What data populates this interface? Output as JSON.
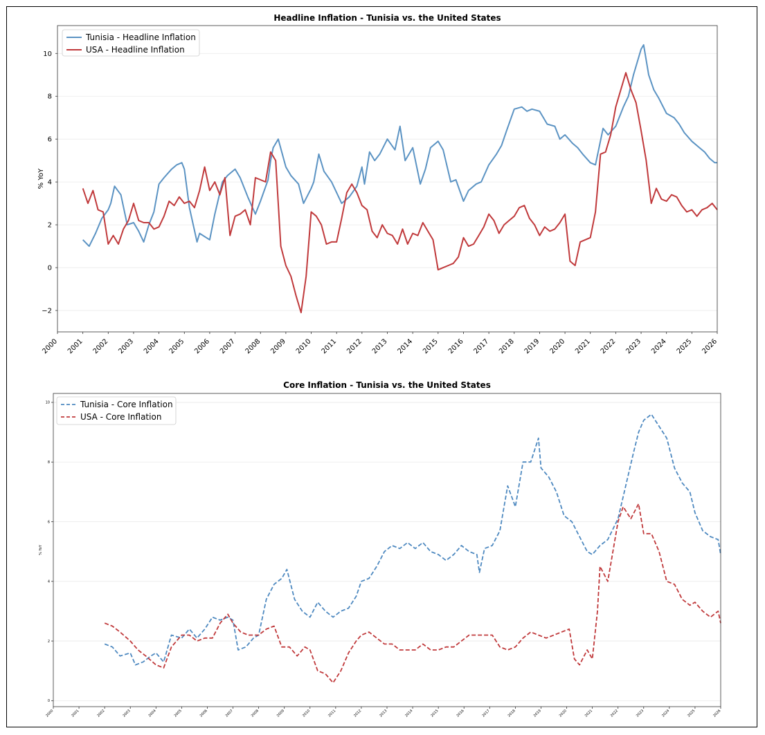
{
  "chart_data": [
    {
      "type": "line",
      "title": "Headline Inflation - Tunisia vs. the United States",
      "xlabel": "",
      "ylabel": "% YoY",
      "xlim": [
        2000,
        2026
      ],
      "ylim": [
        -3,
        11.3
      ],
      "x_ticks": [
        "2000",
        "2001",
        "2002",
        "2003",
        "2004",
        "2005",
        "2006",
        "2007",
        "2008",
        "2009",
        "2010",
        "2011",
        "2012",
        "2013",
        "2014",
        "2015",
        "2016",
        "2017",
        "2018",
        "2019",
        "2020",
        "2021",
        "2022",
        "2023",
        "2024",
        "2025",
        "2026"
      ],
      "y_ticks": [
        -2,
        0,
        2,
        4,
        6,
        8,
        10
      ],
      "grid": "horizontal",
      "legend": "top-left",
      "series": [
        {
          "name": "Tunisia - Headline Inflation",
          "color": "#5b93c3",
          "dash": "solid",
          "x": [
            2001.0,
            2001.25,
            2001.5,
            2001.75,
            2002.0,
            2002.1,
            2002.25,
            2002.5,
            2002.75,
            2003.0,
            2003.2,
            2003.4,
            2003.6,
            2003.8,
            2004.0,
            2004.2,
            2004.5,
            2004.7,
            2004.9,
            2005.0,
            2005.2,
            2005.5,
            2005.6,
            2006.0,
            2006.2,
            2006.5,
            2006.7,
            2007.0,
            2007.2,
            2007.5,
            2007.8,
            2008.0,
            2008.3,
            2008.4,
            2008.5,
            2008.7,
            2009.0,
            2009.2,
            2009.5,
            2009.7,
            2010.0,
            2010.1,
            2010.3,
            2010.5,
            2010.8,
            2011.0,
            2011.2,
            2011.5,
            2011.8,
            2012.0,
            2012.1,
            2012.3,
            2012.5,
            2012.7,
            2013.0,
            2013.3,
            2013.5,
            2013.7,
            2014.0,
            2014.3,
            2014.5,
            2014.7,
            2015.0,
            2015.2,
            2015.5,
            2015.7,
            2016.0,
            2016.2,
            2016.5,
            2016.7,
            2017.0,
            2017.3,
            2017.5,
            2017.7,
            2018.0,
            2018.3,
            2018.5,
            2018.7,
            2019.0,
            2019.3,
            2019.6,
            2019.8,
            2020.0,
            2020.3,
            2020.5,
            2020.7,
            2021.0,
            2021.2,
            2021.5,
            2021.7,
            2022.0,
            2022.3,
            2022.5,
            2022.7,
            2023.0,
            2023.1,
            2023.3,
            2023.5,
            2023.7,
            2024.0,
            2024.3,
            2024.5,
            2024.7,
            2025.0,
            2025.3,
            2025.5,
            2025.7,
            2025.9,
            2026.0
          ],
          "values": [
            1.3,
            1.0,
            1.6,
            2.3,
            2.7,
            3.0,
            3.8,
            3.4,
            2.0,
            2.1,
            1.7,
            1.2,
            2.0,
            2.6,
            3.9,
            4.2,
            4.6,
            4.8,
            4.9,
            4.6,
            2.8,
            1.2,
            1.6,
            1.3,
            2.5,
            4.0,
            4.3,
            4.6,
            4.2,
            3.3,
            2.5,
            3.1,
            4.1,
            5.0,
            5.6,
            6.0,
            4.7,
            4.3,
            3.9,
            3.0,
            3.7,
            4.0,
            5.3,
            4.5,
            4.0,
            3.5,
            3.0,
            3.3,
            3.8,
            4.7,
            3.9,
            5.4,
            5.0,
            5.3,
            6.0,
            5.5,
            6.6,
            5.0,
            5.6,
            3.9,
            4.6,
            5.6,
            5.9,
            5.5,
            4.0,
            4.1,
            3.1,
            3.6,
            3.9,
            4.0,
            4.8,
            5.3,
            5.7,
            6.4,
            7.4,
            7.5,
            7.3,
            7.4,
            7.3,
            6.7,
            6.6,
            6.0,
            6.2,
            5.8,
            5.6,
            5.3,
            4.9,
            4.8,
            6.5,
            6.2,
            6.6,
            7.5,
            8.0,
            9.0,
            10.2,
            10.4,
            9.0,
            8.3,
            7.9,
            7.2,
            7.0,
            6.7,
            6.3,
            5.9,
            5.6,
            5.4,
            5.1,
            4.9,
            4.9
          ]
        },
        {
          "name": "USA - Headline Inflation",
          "color": "#c0393b",
          "dash": "solid",
          "x": [
            2001.0,
            2001.2,
            2001.4,
            2001.6,
            2001.8,
            2002.0,
            2002.2,
            2002.4,
            2002.6,
            2002.8,
            2003.0,
            2003.2,
            2003.4,
            2003.6,
            2003.8,
            2004.0,
            2004.2,
            2004.4,
            2004.6,
            2004.8,
            2005.0,
            2005.2,
            2005.4,
            2005.6,
            2005.8,
            2006.0,
            2006.2,
            2006.4,
            2006.6,
            2006.8,
            2007.0,
            2007.2,
            2007.4,
            2007.6,
            2007.8,
            2008.0,
            2008.2,
            2008.4,
            2008.6,
            2008.8,
            2009.0,
            2009.2,
            2009.4,
            2009.6,
            2009.8,
            2010.0,
            2010.2,
            2010.4,
            2010.6,
            2010.8,
            2011.0,
            2011.2,
            2011.4,
            2011.6,
            2011.8,
            2012.0,
            2012.2,
            2012.4,
            2012.6,
            2012.8,
            2013.0,
            2013.2,
            2013.4,
            2013.6,
            2013.8,
            2014.0,
            2014.2,
            2014.4,
            2014.6,
            2014.8,
            2015.0,
            2015.2,
            2015.4,
            2015.6,
            2015.8,
            2016.0,
            2016.2,
            2016.4,
            2016.6,
            2016.8,
            2017.0,
            2017.2,
            2017.4,
            2017.6,
            2017.8,
            2018.0,
            2018.2,
            2018.4,
            2018.6,
            2018.8,
            2019.0,
            2019.2,
            2019.4,
            2019.6,
            2019.8,
            2020.0,
            2020.2,
            2020.4,
            2020.6,
            2020.8,
            2021.0,
            2021.2,
            2021.4,
            2021.6,
            2021.8,
            2022.0,
            2022.2,
            2022.4,
            2022.6,
            2022.8,
            2023.0,
            2023.2,
            2023.4,
            2023.6,
            2023.8,
            2024.0,
            2024.2,
            2024.4,
            2024.6,
            2024.8,
            2025.0,
            2025.2,
            2025.4,
            2025.6,
            2025.8,
            2026.0
          ],
          "values": [
            3.7,
            3.0,
            3.6,
            2.7,
            2.6,
            1.1,
            1.5,
            1.1,
            1.8,
            2.2,
            3.0,
            2.2,
            2.1,
            2.1,
            1.8,
            1.9,
            2.4,
            3.1,
            2.9,
            3.3,
            3.0,
            3.1,
            2.8,
            3.6,
            4.7,
            3.6,
            4.0,
            3.4,
            4.2,
            1.5,
            2.4,
            2.5,
            2.7,
            2.0,
            4.2,
            4.1,
            4.0,
            5.4,
            5.0,
            1.0,
            0.1,
            -0.4,
            -1.3,
            -2.1,
            -0.4,
            2.6,
            2.4,
            2.0,
            1.1,
            1.2,
            1.2,
            2.3,
            3.5,
            3.9,
            3.5,
            2.9,
            2.7,
            1.7,
            1.4,
            2.0,
            1.6,
            1.5,
            1.1,
            1.8,
            1.1,
            1.6,
            1.5,
            2.1,
            1.7,
            1.3,
            -0.1,
            0.0,
            0.1,
            0.2,
            0.5,
            1.4,
            1.0,
            1.1,
            1.5,
            1.9,
            2.5,
            2.2,
            1.6,
            2.0,
            2.2,
            2.4,
            2.8,
            2.9,
            2.3,
            2.0,
            1.5,
            1.9,
            1.7,
            1.8,
            2.1,
            2.5,
            0.3,
            0.1,
            1.2,
            1.3,
            1.4,
            2.6,
            5.3,
            5.4,
            6.2,
            7.5,
            8.3,
            9.1,
            8.3,
            7.7,
            6.4,
            5.0,
            3.0,
            3.7,
            3.2,
            3.1,
            3.4,
            3.3,
            2.9,
            2.6,
            2.7,
            2.4,
            2.7,
            2.8,
            3.0,
            2.7
          ]
        }
      ]
    },
    {
      "type": "line",
      "title": "Core Inflation - Tunisia vs. the United States",
      "xlabel": "",
      "ylabel": "% YoY",
      "xlim": [
        2000,
        2026
      ],
      "ylim": [
        -0.2,
        10.3
      ],
      "x_ticks": [
        "2000",
        "2001",
        "2002",
        "2003",
        "2004",
        "2005",
        "2006",
        "2007",
        "2008",
        "2009",
        "2010",
        "2011",
        "2012",
        "2013",
        "2014",
        "2015",
        "2016",
        "2017",
        "2018",
        "2019",
        "2020",
        "2021",
        "2022",
        "2023",
        "2024",
        "2025",
        "2026"
      ],
      "y_ticks": [
        0,
        2,
        4,
        6,
        8,
        10
      ],
      "grid": "horizontal",
      "legend": "top-left",
      "series": [
        {
          "name": "Tunisia - Core Inflation",
          "color": "#4e89c0",
          "dash": "dashed",
          "x": [
            2002.0,
            2002.3,
            2002.6,
            2003.0,
            2003.2,
            2003.5,
            2003.8,
            2004.0,
            2004.3,
            2004.6,
            2005.0,
            2005.3,
            2005.6,
            2005.9,
            2006.2,
            2006.5,
            2006.8,
            2007.0,
            2007.2,
            2007.5,
            2007.8,
            2008.0,
            2008.3,
            2008.6,
            2008.9,
            2009.1,
            2009.4,
            2009.7,
            2010.0,
            2010.3,
            2010.6,
            2010.9,
            2011.2,
            2011.5,
            2011.8,
            2012.0,
            2012.3,
            2012.6,
            2012.9,
            2013.2,
            2013.5,
            2013.8,
            2014.1,
            2014.4,
            2014.7,
            2015.0,
            2015.3,
            2015.6,
            2015.9,
            2016.2,
            2016.5,
            2016.6,
            2016.8,
            2017.1,
            2017.4,
            2017.5,
            2017.7,
            2018.0,
            2018.3,
            2018.6,
            2018.9,
            2019.0,
            2019.3,
            2019.6,
            2019.9,
            2020.2,
            2020.5,
            2020.8,
            2021.0,
            2021.3,
            2021.6,
            2022.0,
            2022.3,
            2022.6,
            2022.8,
            2023.0,
            2023.3,
            2023.6,
            2023.9,
            2024.2,
            2024.5,
            2024.8,
            2025.0,
            2025.3,
            2025.6,
            2025.9,
            2026.0
          ],
          "values": [
            1.9,
            1.8,
            1.5,
            1.6,
            1.2,
            1.3,
            1.5,
            1.6,
            1.3,
            2.2,
            2.1,
            2.4,
            2.1,
            2.4,
            2.8,
            2.7,
            2.8,
            2.7,
            1.7,
            1.8,
            2.1,
            2.2,
            3.4,
            3.9,
            4.1,
            4.4,
            3.4,
            3.0,
            2.8,
            3.3,
            3.0,
            2.8,
            3.0,
            3.1,
            3.5,
            4.0,
            4.1,
            4.5,
            5.0,
            5.2,
            5.1,
            5.3,
            5.1,
            5.3,
            5.0,
            4.9,
            4.7,
            4.9,
            5.2,
            5.0,
            4.9,
            4.3,
            5.1,
            5.2,
            5.7,
            6.2,
            7.2,
            6.5,
            8.0,
            8.0,
            8.8,
            7.8,
            7.5,
            7.0,
            6.2,
            6.0,
            5.5,
            5.0,
            4.9,
            5.2,
            5.4,
            6.1,
            7.2,
            8.3,
            9.0,
            9.4,
            9.6,
            9.2,
            8.8,
            7.8,
            7.3,
            7.0,
            6.3,
            5.7,
            5.5,
            5.4,
            4.9
          ]
        },
        {
          "name": "USA - Core Inflation",
          "color": "#c0393b",
          "dash": "dashed",
          "x": [
            2002.0,
            2002.3,
            2002.6,
            2003.0,
            2003.3,
            2003.6,
            2004.0,
            2004.3,
            2004.6,
            2005.0,
            2005.3,
            2005.6,
            2005.9,
            2006.2,
            2006.5,
            2006.8,
            2007.0,
            2007.3,
            2007.6,
            2008.0,
            2008.3,
            2008.6,
            2008.9,
            2009.2,
            2009.5,
            2009.8,
            2010.0,
            2010.3,
            2010.6,
            2010.9,
            2011.2,
            2011.5,
            2011.8,
            2012.0,
            2012.3,
            2012.6,
            2012.9,
            2013.2,
            2013.5,
            2013.8,
            2014.1,
            2014.4,
            2014.7,
            2015.0,
            2015.3,
            2015.6,
            2015.9,
            2016.2,
            2016.5,
            2016.8,
            2017.1,
            2017.4,
            2017.7,
            2018.0,
            2018.3,
            2018.6,
            2018.9,
            2019.2,
            2019.5,
            2019.8,
            2020.1,
            2020.3,
            2020.5,
            2020.8,
            2021.0,
            2021.2,
            2021.3,
            2021.6,
            2021.8,
            2022.0,
            2022.2,
            2022.5,
            2022.8,
            2023.0,
            2023.3,
            2023.6,
            2023.9,
            2024.2,
            2024.5,
            2024.8,
            2025.0,
            2025.3,
            2025.6,
            2025.9,
            2026.0
          ],
          "values": [
            2.6,
            2.5,
            2.3,
            2.0,
            1.7,
            1.5,
            1.2,
            1.1,
            1.8,
            2.2,
            2.2,
            2.0,
            2.1,
            2.1,
            2.6,
            2.9,
            2.6,
            2.3,
            2.2,
            2.2,
            2.4,
            2.5,
            1.8,
            1.8,
            1.5,
            1.8,
            1.7,
            1.0,
            0.9,
            0.6,
            1.0,
            1.6,
            2.0,
            2.2,
            2.3,
            2.1,
            1.9,
            1.9,
            1.7,
            1.7,
            1.7,
            1.9,
            1.7,
            1.7,
            1.8,
            1.8,
            2.0,
            2.2,
            2.2,
            2.2,
            2.2,
            1.8,
            1.7,
            1.8,
            2.1,
            2.3,
            2.2,
            2.1,
            2.2,
            2.3,
            2.4,
            1.4,
            1.2,
            1.7,
            1.4,
            3.0,
            4.5,
            4.0,
            5.0,
            6.0,
            6.5,
            6.1,
            6.6,
            5.6,
            5.6,
            5.0,
            4.0,
            3.9,
            3.4,
            3.2,
            3.3,
            3.0,
            2.8,
            3.0,
            2.6
          ]
        }
      ]
    }
  ]
}
